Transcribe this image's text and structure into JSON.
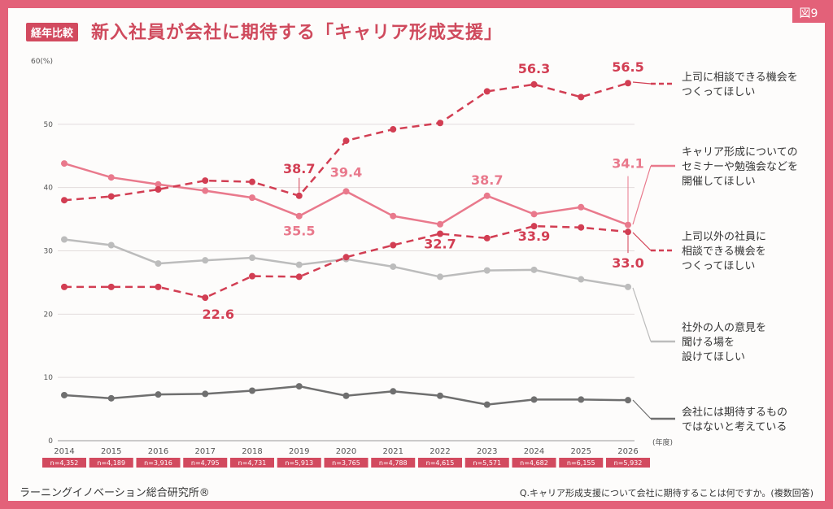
{
  "header": {
    "badge": "経年比較",
    "title": "新入社員が会社に期待する「キャリア形成支援」",
    "figure": "図9"
  },
  "footer": {
    "source": "ラーニングイノベーション総合研究所®",
    "question": "Q.キャリア形成支援について会社に期待することは何ですか。(複数回答)"
  },
  "chart_data": {
    "type": "line",
    "y_unit": "60(%)",
    "x_unit": "(年度)",
    "ylim": [
      0,
      60
    ],
    "yticks": [
      "0",
      "10",
      "20",
      "30",
      "40",
      "50"
    ],
    "x": [
      "2014",
      "2015",
      "2016",
      "2017",
      "2018",
      "2019",
      "2020",
      "2021",
      "2022",
      "2023",
      "2024",
      "2025",
      "2026"
    ],
    "n": [
      "n=4,352",
      "n=4,189",
      "n=3,916",
      "n=4,795",
      "n=4,731",
      "n=5,913",
      "n=3,765",
      "n=4,788",
      "n=4,615",
      "n=5,571",
      "n=4,682",
      "n=6,155",
      "n=5,932"
    ],
    "series": [
      {
        "name": "上司に相談できる機会をつくってほしい",
        "color": "#d23e53",
        "dash": true,
        "values": [
          38.0,
          38.6,
          39.7,
          41.1,
          40.9,
          38.7,
          47.4,
          49.2,
          50.2,
          55.2,
          56.3,
          54.3,
          56.5
        ]
      },
      {
        "name": "キャリア形成についてのセミナーや勉強会などを開催してほしい",
        "color": "#e9798c",
        "dash": false,
        "values": [
          43.8,
          41.6,
          40.5,
          39.5,
          38.4,
          35.5,
          39.4,
          35.5,
          34.2,
          38.7,
          35.8,
          36.9,
          34.1
        ]
      },
      {
        "name": "上司以外の社員に相談できる機会をつくってほしい",
        "color": "#d23e53",
        "dash": true,
        "values": [
          24.3,
          24.3,
          24.3,
          22.6,
          26.0,
          25.9,
          29.0,
          30.9,
          32.7,
          32.0,
          33.9,
          33.7,
          33.0
        ]
      },
      {
        "name": "社外の人の意見を聞ける場を設けてほしい",
        "color": "#bcbcbc",
        "dash": false,
        "values": [
          31.8,
          30.9,
          28.0,
          28.5,
          28.9,
          27.8,
          28.7,
          27.5,
          25.9,
          26.9,
          27.0,
          25.5,
          24.3
        ]
      },
      {
        "name": "会社には期待するものではないと考えている",
        "color": "#6f6f6f",
        "dash": false,
        "values": [
          7.2,
          6.7,
          7.3,
          7.4,
          7.9,
          8.6,
          7.1,
          7.8,
          7.1,
          5.7,
          6.5,
          6.5,
          6.4
        ]
      }
    ],
    "annotations": [
      {
        "series": 0,
        "index": 5,
        "text": "38.7"
      },
      {
        "series": 0,
        "index": 10,
        "text": "56.3"
      },
      {
        "series": 0,
        "index": 12,
        "text": "56.5"
      },
      {
        "series": 1,
        "index": 5,
        "text": "35.5"
      },
      {
        "series": 1,
        "index": 6,
        "text": "39.4"
      },
      {
        "series": 1,
        "index": 9,
        "text": "38.7"
      },
      {
        "series": 1,
        "index": 12,
        "text": "34.1"
      },
      {
        "series": 2,
        "index": 3,
        "text": "22.6"
      },
      {
        "series": 2,
        "index": 8,
        "text": "32.7"
      },
      {
        "series": 2,
        "index": 10,
        "text": "33.9"
      },
      {
        "series": 2,
        "index": 12,
        "text": "33.0"
      }
    ],
    "legend": [
      {
        "lines": [
          "上司に相談できる機会を",
          "つくってほしい"
        ]
      },
      {
        "lines": [
          "キャリア形成についての",
          "セミナーや勉強会などを",
          "開催してほしい"
        ]
      },
      {
        "lines": [
          "上司以外の社員に",
          "相談できる機会を",
          "つくってほしい"
        ]
      },
      {
        "lines": [
          "社外の人の意見を",
          "聞ける場を",
          "設けてほしい"
        ]
      },
      {
        "lines": [
          "会社には期待するもの",
          "ではないと考えている"
        ]
      }
    ]
  }
}
